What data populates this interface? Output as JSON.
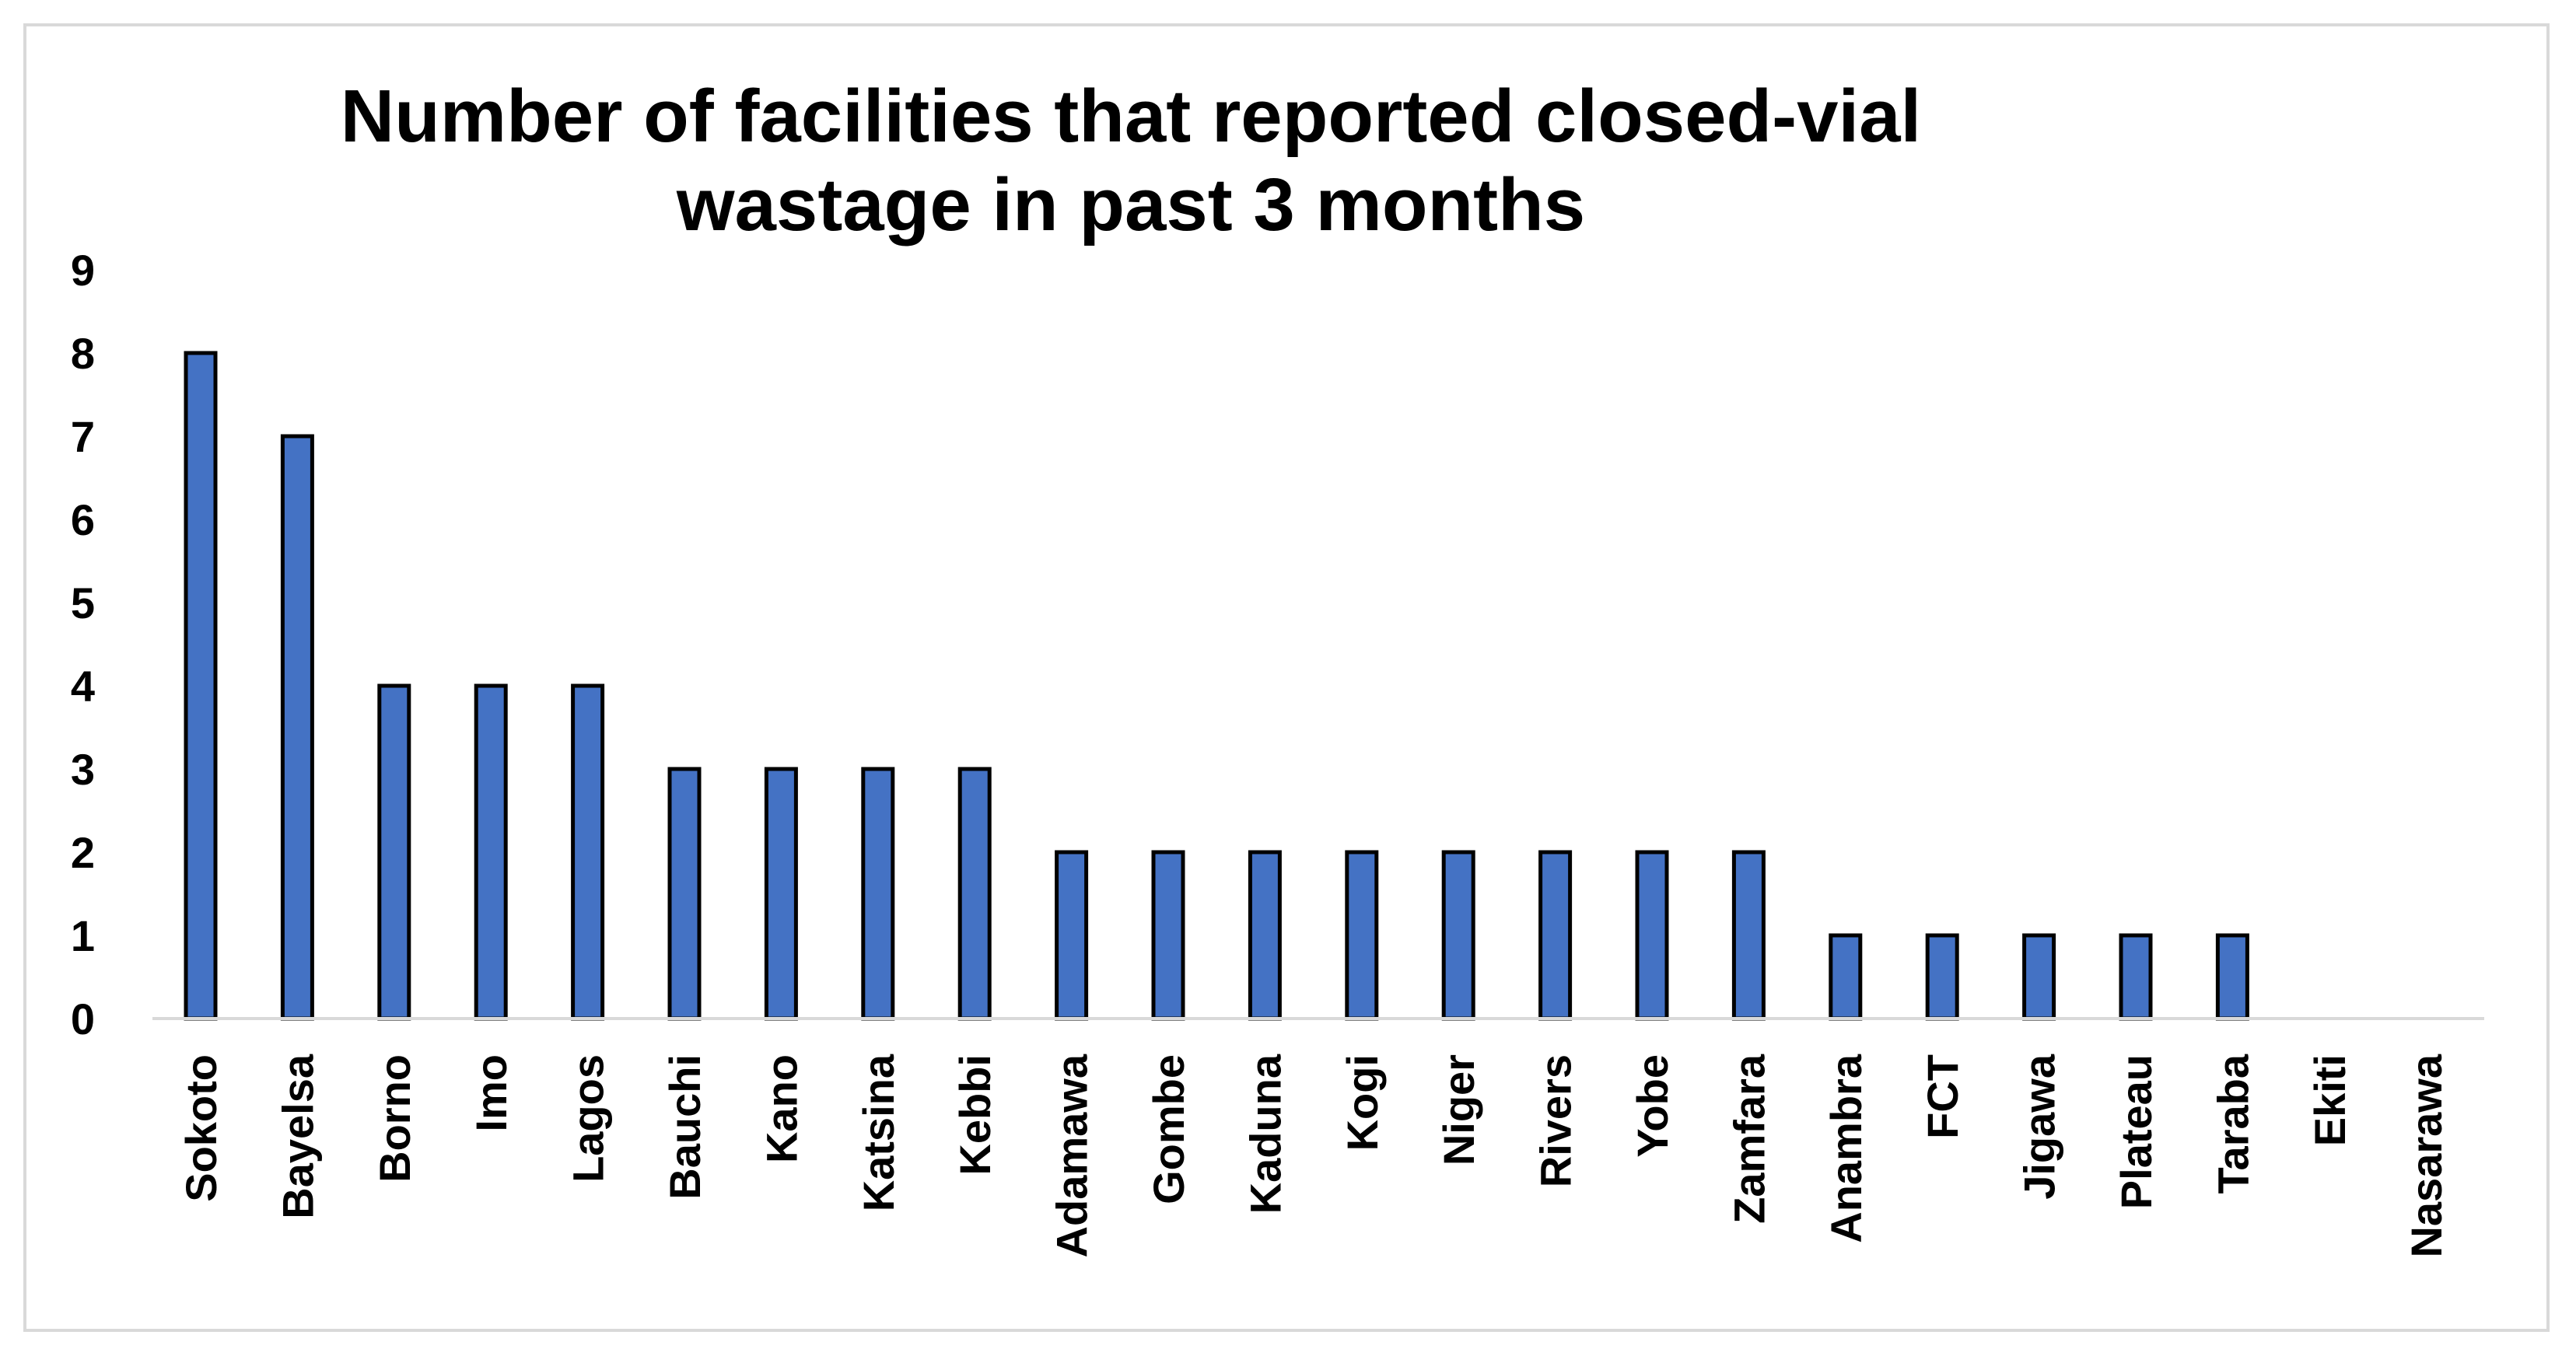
{
  "chart_data": {
    "type": "bar",
    "title_lines": [
      "Number of facilities that reported closed-vial",
      "wastage in past 3 months"
    ],
    "xlabel": "",
    "ylabel": "",
    "ylim": [
      0,
      9
    ],
    "yticks": [
      0,
      1,
      2,
      3,
      4,
      5,
      6,
      7,
      8,
      9
    ],
    "grid": false,
    "legend": "none",
    "bar_color": "#4472c4",
    "bar_edge_color": "#000000",
    "axis_color": "#d9d9d9",
    "categories": [
      "Sokoto",
      "Bayelsa",
      "Borno",
      "Imo",
      "Lagos",
      "Bauchi",
      "Kano",
      "Katsina",
      "Kebbi",
      "Adamawa",
      "Gombe",
      "Kaduna",
      "Kogi",
      "Niger",
      "Rivers",
      "Yobe",
      "Zamfara",
      "Anambra",
      "FCT",
      "Jigawa",
      "Plateau",
      "Taraba",
      "Ekiti",
      "Nasarawa"
    ],
    "values": [
      8,
      7,
      4,
      4,
      4,
      3,
      3,
      3,
      3,
      2,
      2,
      2,
      2,
      2,
      2,
      2,
      2,
      1,
      1,
      1,
      1,
      1,
      0,
      0
    ]
  }
}
